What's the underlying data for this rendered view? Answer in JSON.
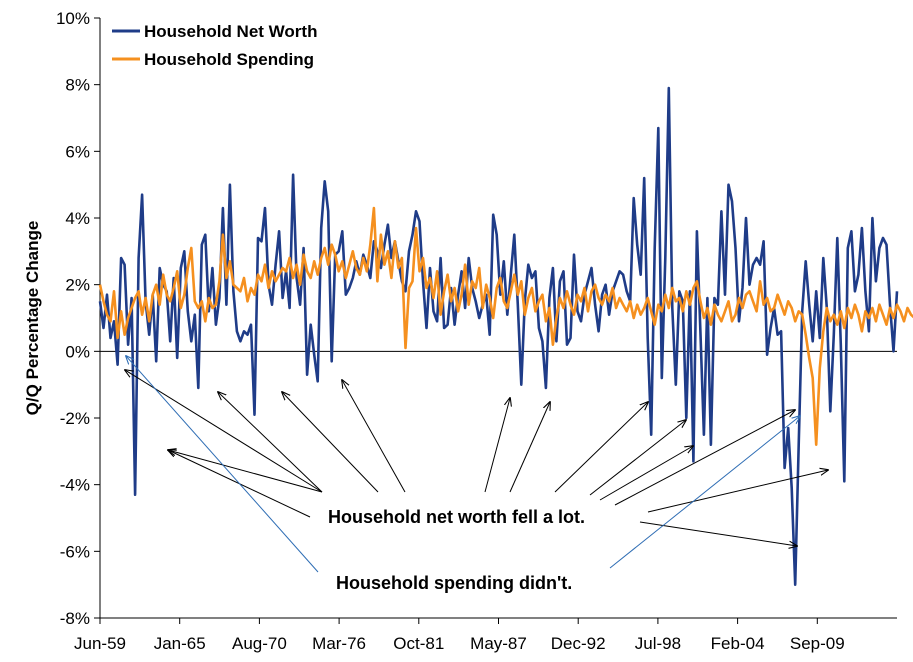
{
  "chart_data": {
    "type": "line",
    "title": "",
    "xlabel": "",
    "ylabel": "Q/Q Percentage Change",
    "ylim": [
      -8,
      10
    ],
    "yticks": [
      "-8%",
      "-6%",
      "-4%",
      "-2%",
      "0%",
      "2%",
      "4%",
      "6%",
      "8%",
      "10%"
    ],
    "xticks": [
      "Jun-59",
      "Jan-65",
      "Aug-70",
      "Mar-76",
      "Oct-81",
      "May-87",
      "Dec-92",
      "Jul-98",
      "Feb-04",
      "Sep-09"
    ],
    "legend_position": "top-left",
    "colors": {
      "net_worth": "#1f3c88",
      "spending": "#f5901f",
      "annotation_black": "#000000",
      "annotation_blue": "#2e6db4"
    },
    "series": [
      {
        "name": "Household Net Worth",
        "values": [
          1.5,
          0.7,
          1.7,
          0.4,
          0.9,
          -0.4,
          2.8,
          2.6,
          0.2,
          1.6,
          -4.3,
          2.8,
          4.7,
          1.5,
          0.5,
          1.7,
          -0.3,
          2.5,
          2.0,
          1.8,
          0.3,
          2.2,
          -0.2,
          2.5,
          3.0,
          1.2,
          0.3,
          1.1,
          -1.1,
          3.2,
          3.5,
          1.2,
          2.5,
          0.8,
          1.6,
          4.3,
          1.4,
          5.0,
          1.8,
          0.6,
          0.3,
          0.6,
          0.5,
          0.8,
          -1.9,
          3.4,
          3.3,
          4.3,
          2.0,
          1.4,
          2.6,
          3.6,
          1.6,
          2.4,
          1.3,
          5.3,
          2.2,
          1.4,
          3.1,
          -0.7,
          0.8,
          -0.1,
          -0.9,
          3.7,
          5.1,
          4.2,
          -0.3,
          2.9,
          3.0,
          3.6,
          1.7,
          1.9,
          2.2,
          2.7,
          2.3,
          2.9,
          2.6,
          2.2,
          3.3,
          3.0,
          2.5,
          3.2,
          3.8,
          2.8,
          3.3,
          2.7,
          2.1,
          1.8,
          3.0,
          3.5,
          4.2,
          3.9,
          2.1,
          0.7,
          2.5,
          1.2,
          0.9,
          2.8,
          0.7,
          0.8,
          1.9,
          0.8,
          1.7,
          2.4,
          1.3,
          2.8,
          1.9,
          1.5,
          1.0,
          1.4,
          1.7,
          0.5,
          4.1,
          3.5,
          1.7,
          2.7,
          1.1,
          2.3,
          3.5,
          1.4,
          -1.0,
          1.5,
          2.6,
          2.2,
          2.4,
          0.7,
          0.3,
          -1.1,
          1.6,
          2.5,
          0.3,
          2.1,
          2.4,
          0.2,
          0.4,
          2.9,
          1.2,
          0.9,
          1.7,
          2.1,
          2.5,
          1.4,
          0.6,
          1.7,
          2.0,
          1.1,
          1.8,
          2.1,
          2.4,
          2.3,
          1.8,
          1.5,
          4.6,
          3.2,
          2.3,
          5.2,
          0.4,
          -2.5,
          3.1,
          6.7,
          -0.8,
          2.8,
          7.9,
          1.3,
          -1.0,
          1.8,
          1.5,
          -2.0,
          1.8,
          -3.3,
          3.6,
          0.6,
          -2.5,
          1.6,
          -2.8,
          1.6,
          1.4,
          4.2,
          1.7,
          5.0,
          4.5,
          3.1,
          0.9,
          1.9,
          4.0,
          2.0,
          2.6,
          2.8,
          2.6,
          3.3,
          -0.1,
          0.7,
          1.3,
          0.5,
          0.6,
          -3.5,
          -2.3,
          -4.1,
          -7.0,
          -2.8,
          1.2,
          2.7,
          1.4,
          0.3,
          1.8,
          0.4,
          2.8,
          1.3,
          -1.8,
          0.5,
          3.4,
          0.2,
          -3.9,
          3.1,
          3.6,
          1.8,
          2.3,
          3.7,
          1.8,
          0.6,
          4.0,
          2.1,
          3.1,
          3.4,
          3.2,
          1.4,
          0.0,
          1.8
        ]
      },
      {
        "name": "Household Spending",
        "values": [
          2.0,
          1.5,
          1.1,
          0.9,
          1.8,
          0.4,
          1.2,
          0.5,
          1.0,
          1.3,
          1.6,
          1.8,
          1.1,
          1.6,
          0.9,
          1.7,
          2.0,
          1.4,
          2.3,
          1.7,
          1.5,
          1.9,
          2.4,
          1.3,
          1.7,
          2.5,
          3.1,
          1.5,
          1.3,
          1.5,
          0.9,
          1.6,
          1.3,
          1.4,
          2.1,
          3.5,
          2.2,
          2.7,
          2.0,
          1.9,
          1.8,
          2.2,
          1.5,
          1.9,
          1.7,
          2.3,
          2.1,
          2.6,
          1.9,
          2.4,
          2.1,
          2.3,
          2.5,
          2.4,
          2.8,
          2.2,
          2.6,
          2.0,
          2.9,
          2.4,
          2.2,
          2.7,
          2.3,
          2.8,
          3.1,
          2.6,
          3.2,
          2.9,
          2.4,
          2.7,
          2.2,
          2.6,
          3.0,
          2.5,
          2.3,
          2.8,
          2.4,
          3.2,
          4.3,
          2.1,
          3.5,
          2.6,
          3.0,
          2.2,
          3.3,
          2.5,
          2.8,
          0.1,
          1.9,
          2.1,
          3.7,
          2.4,
          2.8,
          1.9,
          2.2,
          1.6,
          2.4,
          1.1,
          1.8,
          2.3,
          1.5,
          1.9,
          1.2,
          1.7,
          2.6,
          1.4,
          2.1,
          1.9,
          2.5,
          1.3,
          2.0,
          1.6,
          1.0,
          1.9,
          2.2,
          1.5,
          1.3,
          1.8,
          2.3,
          1.7,
          2.1,
          1.1,
          1.6,
          1.9,
          1.2,
          1.5,
          1.7,
          0.9,
          1.3,
          0.2,
          1.0,
          1.6,
          1.3,
          1.8,
          1.4,
          1.1,
          1.7,
          1.5,
          1.9,
          1.2,
          1.8,
          2.0,
          1.6,
          1.4,
          1.7,
          1.5,
          1.9,
          1.3,
          1.6,
          1.4,
          1.2,
          1.5,
          1.0,
          1.4,
          1.1,
          1.3,
          1.6,
          1.2,
          0.8,
          1.4,
          1.2,
          1.7,
          1.3,
          1.9,
          1.5,
          1.6,
          1.2,
          1.8,
          1.4,
          1.9,
          2.1,
          1.5,
          1.0,
          1.3,
          0.8,
          1.4,
          1.1,
          0.9,
          1.2,
          1.5,
          0.9,
          1.1,
          1.6,
          1.3,
          1.7,
          1.8,
          1.5,
          1.2,
          2.1,
          1.4,
          1.6,
          1.2,
          1.3,
          1.7,
          1.4,
          1.1,
          1.5,
          1.3,
          0.9,
          1.2,
          1.1,
          0.5,
          -0.2,
          -0.8,
          -2.8,
          -0.5,
          0.6,
          1.3,
          0.9,
          1.1,
          0.8,
          1.2,
          0.7,
          1.3,
          1.0,
          1.4,
          1.1,
          0.6,
          1.2,
          1.0,
          1.3,
          0.9,
          1.4,
          1.1,
          0.8,
          1.3,
          1.0,
          1.4,
          1.2,
          0.9,
          1.3,
          1.1,
          1.0
        ]
      }
    ],
    "annotations": {
      "net_worth_text": "Household net worth fell a lot.",
      "spending_text": "Household spending didn't."
    }
  }
}
